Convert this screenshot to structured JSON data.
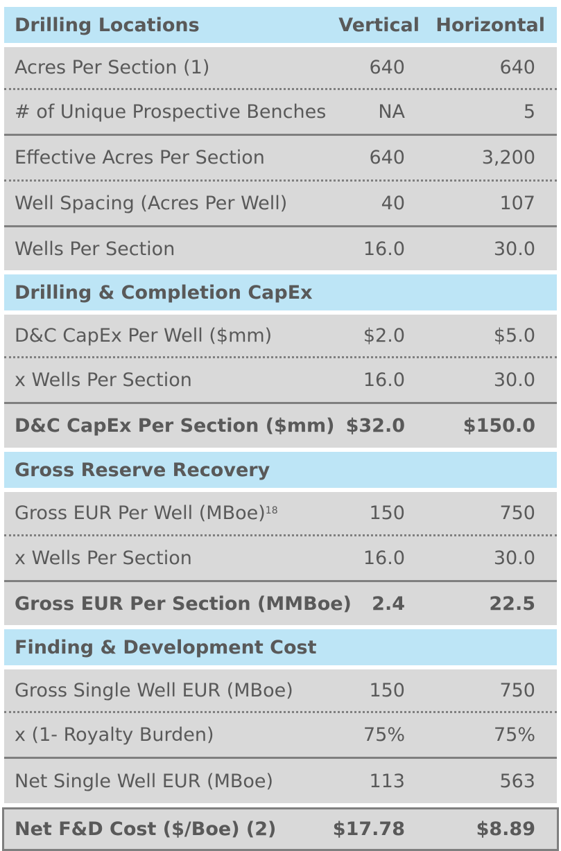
{
  "header": {
    "title": "Drilling Locations",
    "col_vertical": "Vertical",
    "col_horizontal": "Horizontal"
  },
  "drilling": [
    {
      "label": "Acres Per Section (1)",
      "vertical": "640",
      "horizontal": "640"
    },
    {
      "label": "# of Unique Prospective Benches",
      "vertical": "NA",
      "horizontal": "5"
    },
    {
      "label": "Effective Acres Per Section",
      "vertical": "640",
      "horizontal": "3,200"
    },
    {
      "label": "Well Spacing (Acres Per Well)",
      "vertical": "40",
      "horizontal": "107"
    },
    {
      "label": "Wells Per Section",
      "vertical": "16.0",
      "horizontal": "30.0"
    }
  ],
  "capex": {
    "title": "Drilling & Completion CapEx",
    "rows": [
      {
        "label": "D&C CapEx Per Well ($mm)",
        "vertical": "$2.0",
        "horizontal": "$5.0"
      },
      {
        "label": "x Wells Per Section",
        "vertical": "16.0",
        "horizontal": "30.0"
      },
      {
        "label": "D&C CapEx Per Section ($mm)",
        "vertical": "$32.0",
        "horizontal": "$150.0"
      }
    ]
  },
  "reserve": {
    "title": "Gross Reserve Recovery",
    "rows": [
      {
        "label": "Gross EUR Per Well (MBoe)",
        "sup": "18",
        "vertical": "150",
        "horizontal": "750"
      },
      {
        "label": "x Wells Per Section",
        "vertical": "16.0",
        "horizontal": "30.0"
      },
      {
        "label": "Gross EUR Per Section (MMBoe)",
        "vertical": "2.4",
        "horizontal": "22.5"
      }
    ]
  },
  "fd": {
    "title": "Finding & Development Cost",
    "rows": [
      {
        "label": "Gross Single Well EUR (MBoe)",
        "vertical": "150",
        "horizontal": "750"
      },
      {
        "label": "x (1- Royalty Burden)",
        "vertical": "75%",
        "horizontal": "75%"
      },
      {
        "label": "Net Single Well EUR (MBoe)",
        "vertical": "113",
        "horizontal": "563"
      },
      {
        "label": "Net F&D Cost ($/Boe) (2)",
        "vertical": "$17.78",
        "horizontal": "$8.89"
      }
    ]
  }
}
